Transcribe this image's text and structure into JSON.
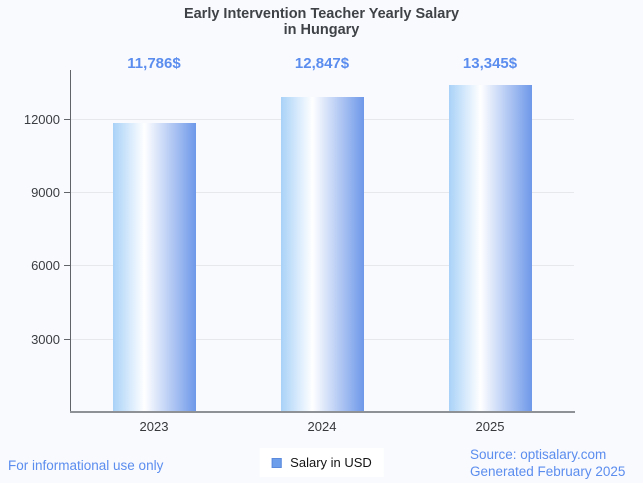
{
  "title": {
    "line1": "Early Intervention Teacher Yearly Salary",
    "line2": "in Hungary"
  },
  "chart_data": {
    "type": "bar",
    "title": "Early Intervention Teacher Yearly Salary in Hungary",
    "categories": [
      "2023",
      "2024",
      "2025"
    ],
    "values": [
      11786,
      12847,
      13345
    ],
    "value_labels": [
      "11,786$",
      "12,847$",
      "13,345$"
    ],
    "series": [
      {
        "name": "Salary in USD",
        "values": [
          11786,
          12847,
          13345
        ]
      }
    ],
    "xlabel": "",
    "ylabel": "",
    "ylim": [
      0,
      14000
    ],
    "yticks": [
      3000,
      6000,
      9000,
      12000
    ],
    "ytick_labels": [
      "3000",
      "6000",
      "9000",
      "12000"
    ],
    "grid": true,
    "legend_position": "bottom-center",
    "bar_gradient": {
      "left": "#a9d2f8",
      "mid": "#ffffff",
      "right": "#6e98e9"
    }
  },
  "legend": {
    "label": "Salary in USD",
    "swatch_color": "#6d9eeb"
  },
  "footer": {
    "disclaimer": "For informational use only",
    "source": "Source: optisalary.com",
    "generated": "Generated February 2025"
  },
  "colors": {
    "accent_blue": "#5b8def",
    "title_text": "#3f4347",
    "axis_text": "#3a3d41",
    "grid_line": "#e6e8ec",
    "axis_line": "#8e9196",
    "background": "#f9fafd"
  }
}
